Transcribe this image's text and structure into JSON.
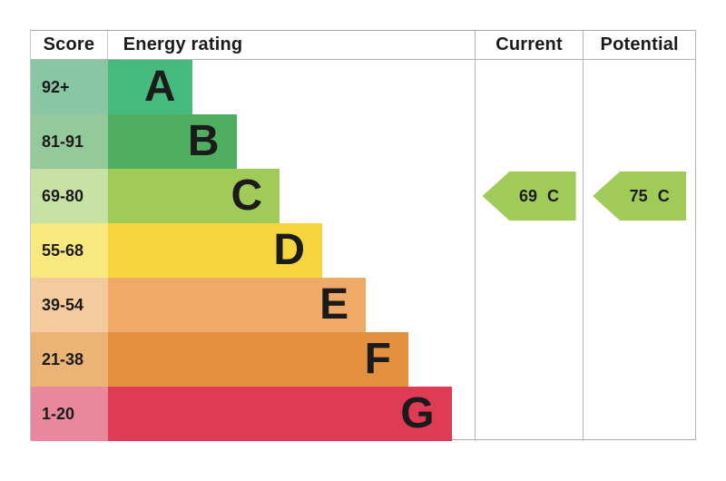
{
  "header": {
    "score": "Score",
    "energy_rating": "Energy rating",
    "current": "Current",
    "potential": "Potential"
  },
  "bands": [
    {
      "letter": "A",
      "score_range": "92+",
      "bar_color": "#47bb7d",
      "score_color": "#89c6a4",
      "bar_width_pct": 23.2
    },
    {
      "letter": "B",
      "score_range": "81-91",
      "bar_color": "#4fae60",
      "score_color": "#94ca9b",
      "bar_width_pct": 35.1
    },
    {
      "letter": "C",
      "score_range": "69-80",
      "bar_color": "#a0cb59",
      "score_color": "#c8e1a5",
      "bar_width_pct": 46.9
    },
    {
      "letter": "D",
      "score_range": "55-68",
      "bar_color": "#f6d53d",
      "score_color": "#fae97f",
      "bar_width_pct": 58.5
    },
    {
      "letter": "E",
      "score_range": "39-54",
      "bar_color": "#f0aa67",
      "score_color": "#f5cb9e",
      "bar_width_pct": 70.4
    },
    {
      "letter": "F",
      "score_range": "21-38",
      "bar_color": "#e3913d",
      "score_color": "#ebb476",
      "bar_width_pct": 82.0
    },
    {
      "letter": "G",
      "score_range": "1-20",
      "bar_color": "#dd3c54",
      "score_color": "#e9879d",
      "bar_width_pct": 93.8
    }
  ],
  "current": {
    "value": "69",
    "rating": "C",
    "arrow_color": "#a0cb59"
  },
  "potential": {
    "value": "75",
    "rating": "C",
    "arrow_color": "#a0cb59"
  },
  "chart_data": {
    "type": "bar",
    "title": "Energy rating (EPC band chart)",
    "categories": [
      "A",
      "B",
      "C",
      "D",
      "E",
      "F",
      "G"
    ],
    "score_ranges": [
      "92+",
      "81-91",
      "69-80",
      "55-68",
      "39-54",
      "21-38",
      "1-20"
    ],
    "bar_width_pct": [
      23.2,
      35.1,
      46.9,
      58.5,
      70.4,
      82.0,
      93.8
    ],
    "band_colors": [
      "#47bb7d",
      "#4fae60",
      "#a0cb59",
      "#f6d53d",
      "#f0aa67",
      "#e3913d",
      "#dd3c54"
    ],
    "score_cell_colors": [
      "#89c6a4",
      "#94ca9b",
      "#c8e1a5",
      "#fae97f",
      "#f5cb9e",
      "#ebb476",
      "#e9879d"
    ],
    "columns": [
      "Score",
      "Energy rating",
      "Current",
      "Potential"
    ],
    "current": {
      "value": 69,
      "rating": "C"
    },
    "potential": {
      "value": 75,
      "rating": "C"
    },
    "legend_position": "none",
    "grid": false
  }
}
